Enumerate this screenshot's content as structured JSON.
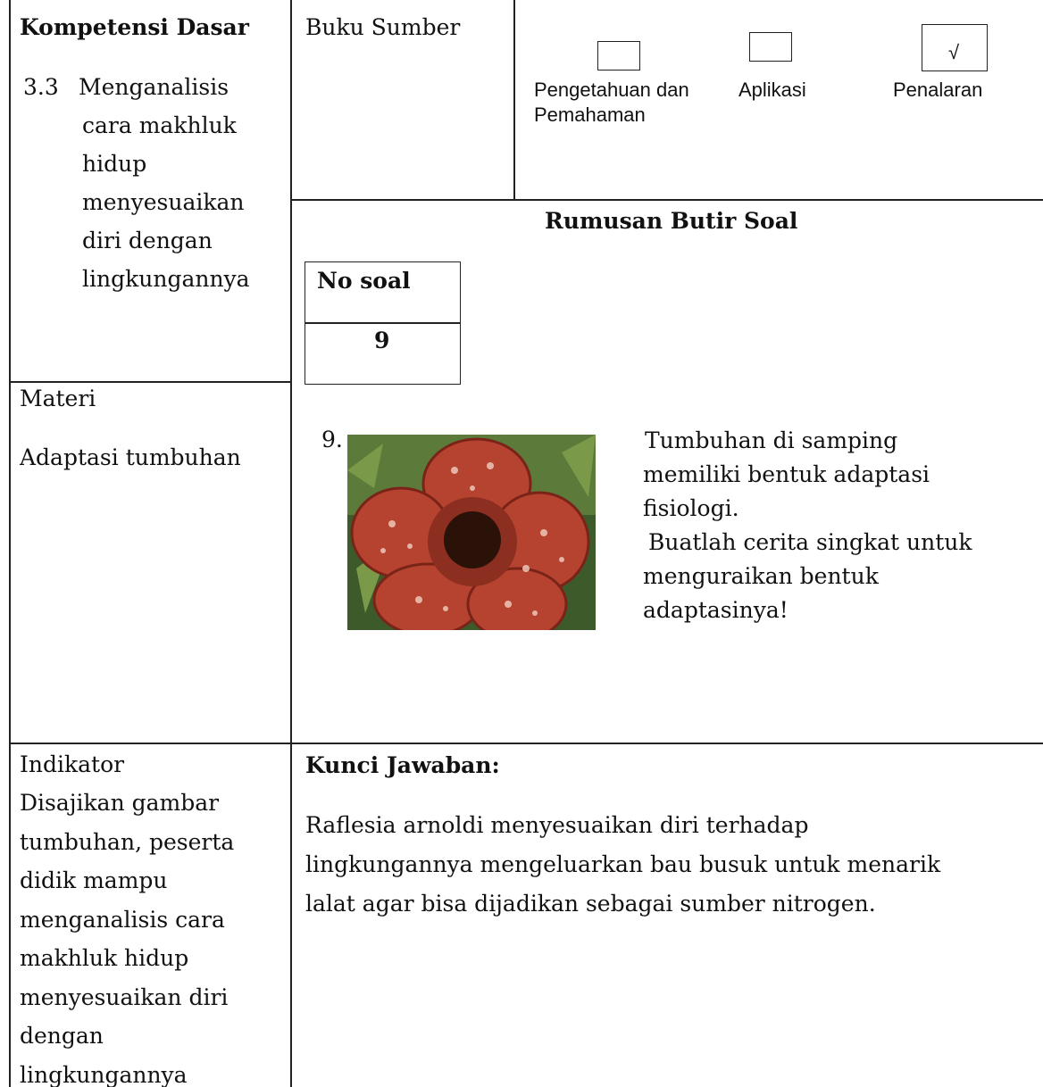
{
  "kompetensi_dasar": {
    "heading": "Kompetensi Dasar",
    "number": "3.3",
    "lines": [
      "Menganalisis",
      "cara makhluk",
      "hidup",
      "menyesuaikan",
      "diri dengan",
      "lingkungannya"
    ]
  },
  "materi": {
    "heading": "Materi",
    "text": "Adaptasi tumbuhan"
  },
  "buku_sumber": "Buku Sumber",
  "levels": [
    {
      "label_lines": [
        "Pengetahuan dan",
        "Pemahaman"
      ]
    },
    {
      "label_lines": [
        "Aplikasi"
      ]
    },
    {
      "label_lines": [
        "Penalaran"
      ],
      "mark": "√"
    }
  ],
  "rumusan": {
    "heading": "Rumusan Butir Soal",
    "no_soal_label": "No soal",
    "no_soal_value": "9"
  },
  "question": {
    "number": "9.",
    "lines": [
      "Tumbuhan di samping",
      "memiliki bentuk adaptasi",
      "fisiologi.",
      "Buatlah cerita singkat untuk",
      "menguraikan bentuk",
      "adaptasinya!"
    ]
  },
  "indikator": {
    "heading": "Indikator",
    "lines": [
      "Disajikan gambar",
      "tumbuhan, peserta",
      "didik mampu",
      "menganalisis cara",
      "makhluk hidup",
      "menyesuaikan diri",
      "dengan",
      "lingkungannya"
    ]
  },
  "kunci_jawaban": {
    "heading": "Kunci Jawaban:",
    "lines": [
      "Raflesia arnoldi menyesuaikan diri terhadap",
      "lingkungannya mengeluarkan bau busuk untuk menarik",
      "lalat agar bisa dijadikan sebagai sumber nitrogen."
    ]
  }
}
